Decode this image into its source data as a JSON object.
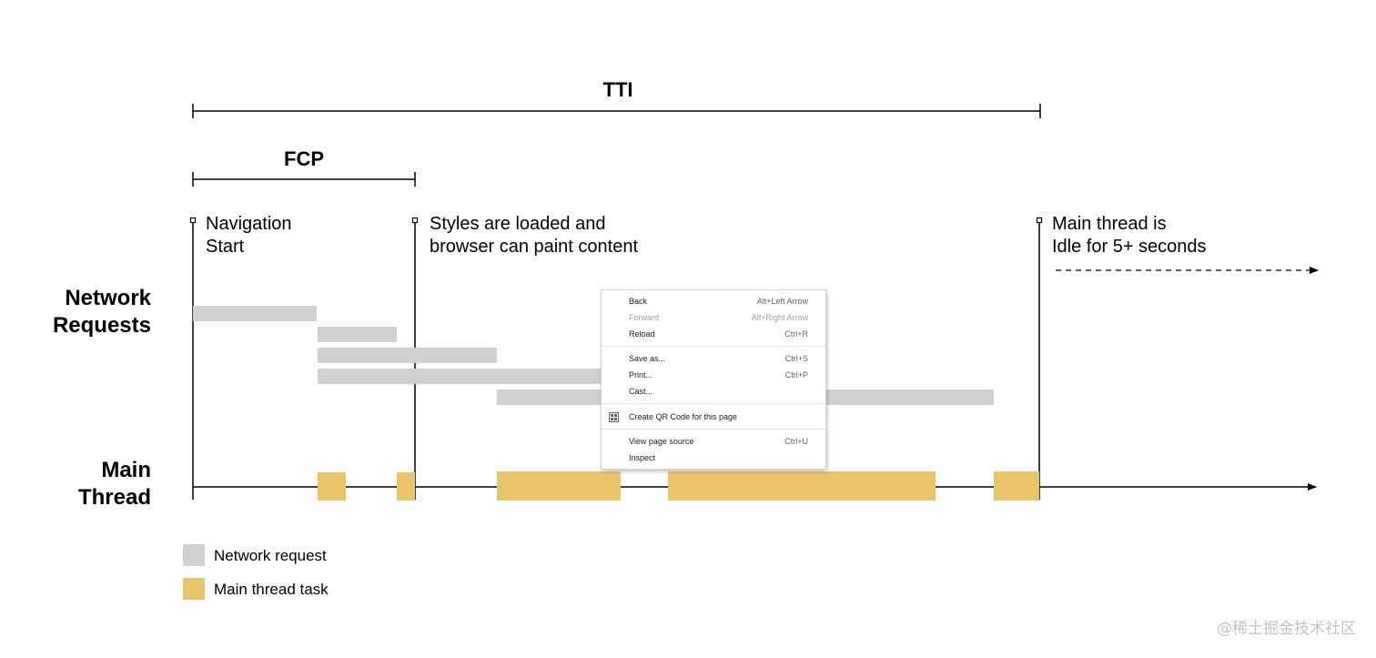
{
  "diagram": {
    "tti_label": "TTI",
    "fcp_label": "FCP",
    "marker_navigation": [
      "Navigation",
      "Start"
    ],
    "marker_styles": [
      "Styles are loaded and",
      "browser can paint content"
    ],
    "marker_idle": [
      "Main thread is",
      "Idle for 5+ seconds"
    ],
    "row_network": [
      "Network",
      "Requests"
    ],
    "row_main": [
      "Main",
      "Thread"
    ],
    "legend": [
      {
        "label": "Network request",
        "color": "#d0d0d0"
      },
      {
        "label": "Main thread task",
        "color": "#e8c46a"
      }
    ],
    "colors": {
      "network": "#d0d0d0",
      "task": "#e8c46a",
      "line": "#000000"
    }
  },
  "context_menu": {
    "items": [
      {
        "label": "Back",
        "shortcut": "Alt+Left Arrow",
        "disabled": false
      },
      {
        "label": "Forward",
        "shortcut": "Alt+Right Arrow",
        "disabled": true
      },
      {
        "label": "Reload",
        "shortcut": "Ctrl+R",
        "disabled": false
      },
      {
        "label": "Save as...",
        "shortcut": "Ctrl+S",
        "disabled": false
      },
      {
        "label": "Print...",
        "shortcut": "Ctrl+P",
        "disabled": false
      },
      {
        "label": "Cast...",
        "shortcut": "",
        "disabled": false
      },
      {
        "label": "Create QR Code for this page",
        "shortcut": "",
        "disabled": false,
        "icon": "qr-code-icon"
      },
      {
        "label": "View page source",
        "shortcut": "Ctrl+U",
        "disabled": false
      },
      {
        "label": "Inspect",
        "shortcut": "",
        "disabled": false
      }
    ]
  },
  "watermark": "@稀土掘金技术社区"
}
